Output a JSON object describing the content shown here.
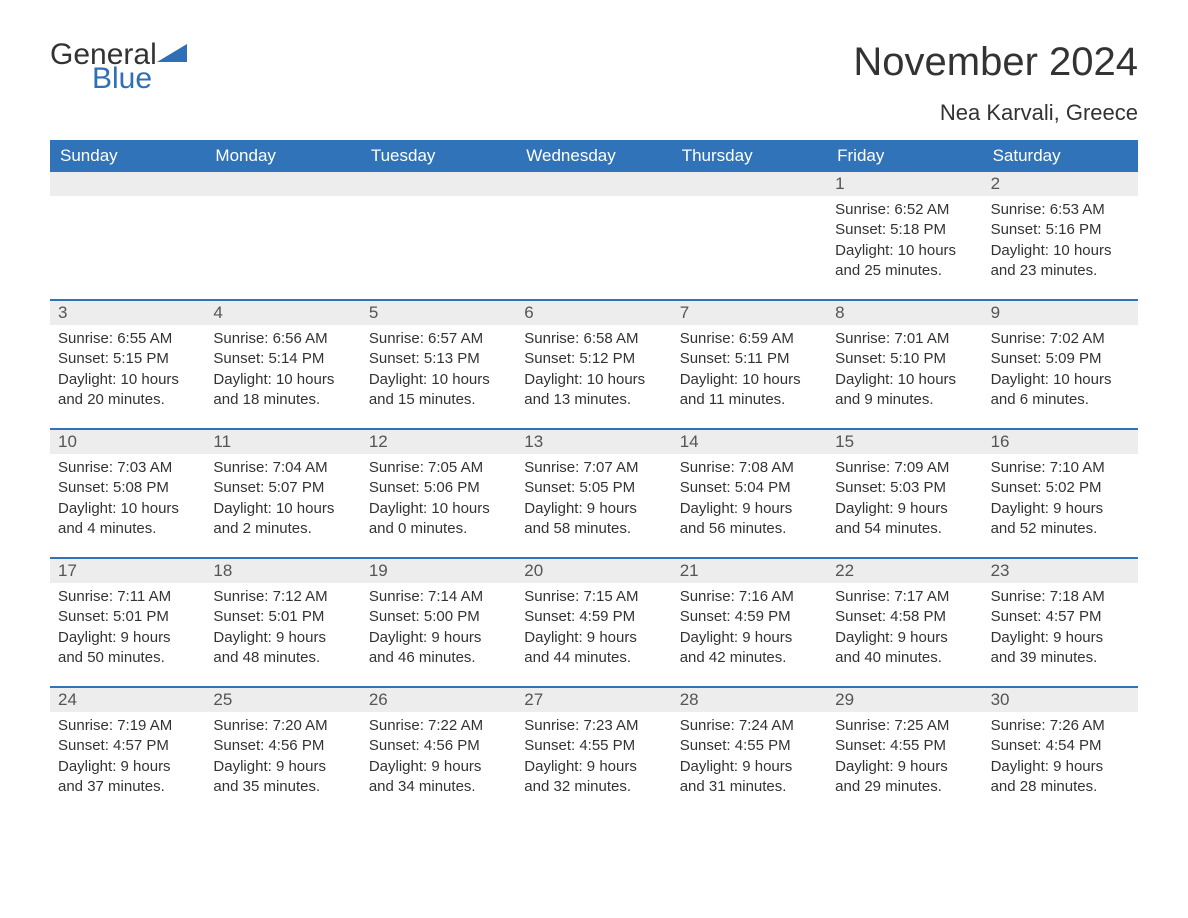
{
  "logo": {
    "general": "General",
    "blue": "Blue",
    "accent_color": "#2e6fb5"
  },
  "title": "November 2024",
  "location": "Nea Karvali, Greece",
  "header_bg": "#3173b8",
  "header_fg": "#ffffff",
  "daynum_bg": "#ededed",
  "week_border": "#3173b8",
  "day_names": [
    "Sunday",
    "Monday",
    "Tuesday",
    "Wednesday",
    "Thursday",
    "Friday",
    "Saturday"
  ],
  "weeks": [
    [
      {
        "day": "",
        "sunrise": "",
        "sunset": "",
        "daylight": ""
      },
      {
        "day": "",
        "sunrise": "",
        "sunset": "",
        "daylight": ""
      },
      {
        "day": "",
        "sunrise": "",
        "sunset": "",
        "daylight": ""
      },
      {
        "day": "",
        "sunrise": "",
        "sunset": "",
        "daylight": ""
      },
      {
        "day": "",
        "sunrise": "",
        "sunset": "",
        "daylight": ""
      },
      {
        "day": "1",
        "sunrise": "Sunrise: 6:52 AM",
        "sunset": "Sunset: 5:18 PM",
        "daylight": "Daylight: 10 hours and 25 minutes."
      },
      {
        "day": "2",
        "sunrise": "Sunrise: 6:53 AM",
        "sunset": "Sunset: 5:16 PM",
        "daylight": "Daylight: 10 hours and 23 minutes."
      }
    ],
    [
      {
        "day": "3",
        "sunrise": "Sunrise: 6:55 AM",
        "sunset": "Sunset: 5:15 PM",
        "daylight": "Daylight: 10 hours and 20 minutes."
      },
      {
        "day": "4",
        "sunrise": "Sunrise: 6:56 AM",
        "sunset": "Sunset: 5:14 PM",
        "daylight": "Daylight: 10 hours and 18 minutes."
      },
      {
        "day": "5",
        "sunrise": "Sunrise: 6:57 AM",
        "sunset": "Sunset: 5:13 PM",
        "daylight": "Daylight: 10 hours and 15 minutes."
      },
      {
        "day": "6",
        "sunrise": "Sunrise: 6:58 AM",
        "sunset": "Sunset: 5:12 PM",
        "daylight": "Daylight: 10 hours and 13 minutes."
      },
      {
        "day": "7",
        "sunrise": "Sunrise: 6:59 AM",
        "sunset": "Sunset: 5:11 PM",
        "daylight": "Daylight: 10 hours and 11 minutes."
      },
      {
        "day": "8",
        "sunrise": "Sunrise: 7:01 AM",
        "sunset": "Sunset: 5:10 PM",
        "daylight": "Daylight: 10 hours and 9 minutes."
      },
      {
        "day": "9",
        "sunrise": "Sunrise: 7:02 AM",
        "sunset": "Sunset: 5:09 PM",
        "daylight": "Daylight: 10 hours and 6 minutes."
      }
    ],
    [
      {
        "day": "10",
        "sunrise": "Sunrise: 7:03 AM",
        "sunset": "Sunset: 5:08 PM",
        "daylight": "Daylight: 10 hours and 4 minutes."
      },
      {
        "day": "11",
        "sunrise": "Sunrise: 7:04 AM",
        "sunset": "Sunset: 5:07 PM",
        "daylight": "Daylight: 10 hours and 2 minutes."
      },
      {
        "day": "12",
        "sunrise": "Sunrise: 7:05 AM",
        "sunset": "Sunset: 5:06 PM",
        "daylight": "Daylight: 10 hours and 0 minutes."
      },
      {
        "day": "13",
        "sunrise": "Sunrise: 7:07 AM",
        "sunset": "Sunset: 5:05 PM",
        "daylight": "Daylight: 9 hours and 58 minutes."
      },
      {
        "day": "14",
        "sunrise": "Sunrise: 7:08 AM",
        "sunset": "Sunset: 5:04 PM",
        "daylight": "Daylight: 9 hours and 56 minutes."
      },
      {
        "day": "15",
        "sunrise": "Sunrise: 7:09 AM",
        "sunset": "Sunset: 5:03 PM",
        "daylight": "Daylight: 9 hours and 54 minutes."
      },
      {
        "day": "16",
        "sunrise": "Sunrise: 7:10 AM",
        "sunset": "Sunset: 5:02 PM",
        "daylight": "Daylight: 9 hours and 52 minutes."
      }
    ],
    [
      {
        "day": "17",
        "sunrise": "Sunrise: 7:11 AM",
        "sunset": "Sunset: 5:01 PM",
        "daylight": "Daylight: 9 hours and 50 minutes."
      },
      {
        "day": "18",
        "sunrise": "Sunrise: 7:12 AM",
        "sunset": "Sunset: 5:01 PM",
        "daylight": "Daylight: 9 hours and 48 minutes."
      },
      {
        "day": "19",
        "sunrise": "Sunrise: 7:14 AM",
        "sunset": "Sunset: 5:00 PM",
        "daylight": "Daylight: 9 hours and 46 minutes."
      },
      {
        "day": "20",
        "sunrise": "Sunrise: 7:15 AM",
        "sunset": "Sunset: 4:59 PM",
        "daylight": "Daylight: 9 hours and 44 minutes."
      },
      {
        "day": "21",
        "sunrise": "Sunrise: 7:16 AM",
        "sunset": "Sunset: 4:59 PM",
        "daylight": "Daylight: 9 hours and 42 minutes."
      },
      {
        "day": "22",
        "sunrise": "Sunrise: 7:17 AM",
        "sunset": "Sunset: 4:58 PM",
        "daylight": "Daylight: 9 hours and 40 minutes."
      },
      {
        "day": "23",
        "sunrise": "Sunrise: 7:18 AM",
        "sunset": "Sunset: 4:57 PM",
        "daylight": "Daylight: 9 hours and 39 minutes."
      }
    ],
    [
      {
        "day": "24",
        "sunrise": "Sunrise: 7:19 AM",
        "sunset": "Sunset: 4:57 PM",
        "daylight": "Daylight: 9 hours and 37 minutes."
      },
      {
        "day": "25",
        "sunrise": "Sunrise: 7:20 AM",
        "sunset": "Sunset: 4:56 PM",
        "daylight": "Daylight: 9 hours and 35 minutes."
      },
      {
        "day": "26",
        "sunrise": "Sunrise: 7:22 AM",
        "sunset": "Sunset: 4:56 PM",
        "daylight": "Daylight: 9 hours and 34 minutes."
      },
      {
        "day": "27",
        "sunrise": "Sunrise: 7:23 AM",
        "sunset": "Sunset: 4:55 PM",
        "daylight": "Daylight: 9 hours and 32 minutes."
      },
      {
        "day": "28",
        "sunrise": "Sunrise: 7:24 AM",
        "sunset": "Sunset: 4:55 PM",
        "daylight": "Daylight: 9 hours and 31 minutes."
      },
      {
        "day": "29",
        "sunrise": "Sunrise: 7:25 AM",
        "sunset": "Sunset: 4:55 PM",
        "daylight": "Daylight: 9 hours and 29 minutes."
      },
      {
        "day": "30",
        "sunrise": "Sunrise: 7:26 AM",
        "sunset": "Sunset: 4:54 PM",
        "daylight": "Daylight: 9 hours and 28 minutes."
      }
    ]
  ]
}
